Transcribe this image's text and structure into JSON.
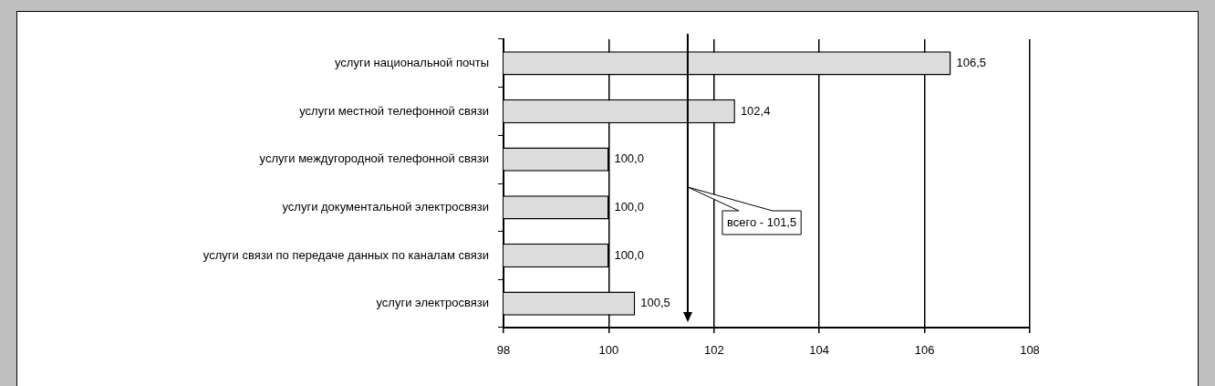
{
  "chart_data": {
    "type": "bar",
    "orientation": "horizontal",
    "categories": [
      "услуги национальной почты",
      "услуги местной телефонной связи",
      "услуги междугородной телефонной связи",
      "услуги документальной электросвязи",
      "услуги связи по передаче данных по каналам связи",
      "услуги электросвязи"
    ],
    "values": [
      106.5,
      102.4,
      100.0,
      100.0,
      100.0,
      100.5
    ],
    "value_labels": [
      "106,5",
      "102,4",
      "100,0",
      "100,0",
      "100,0",
      "100,5"
    ],
    "color": "#dcdcdc",
    "xlim": [
      98,
      108
    ],
    "xticks": [
      98,
      100,
      102,
      104,
      106,
      108
    ],
    "grid": "x",
    "ref_lines": [
      {
        "axis": "x",
        "value": 101.5,
        "label": "всего - 101,5"
      }
    ]
  }
}
